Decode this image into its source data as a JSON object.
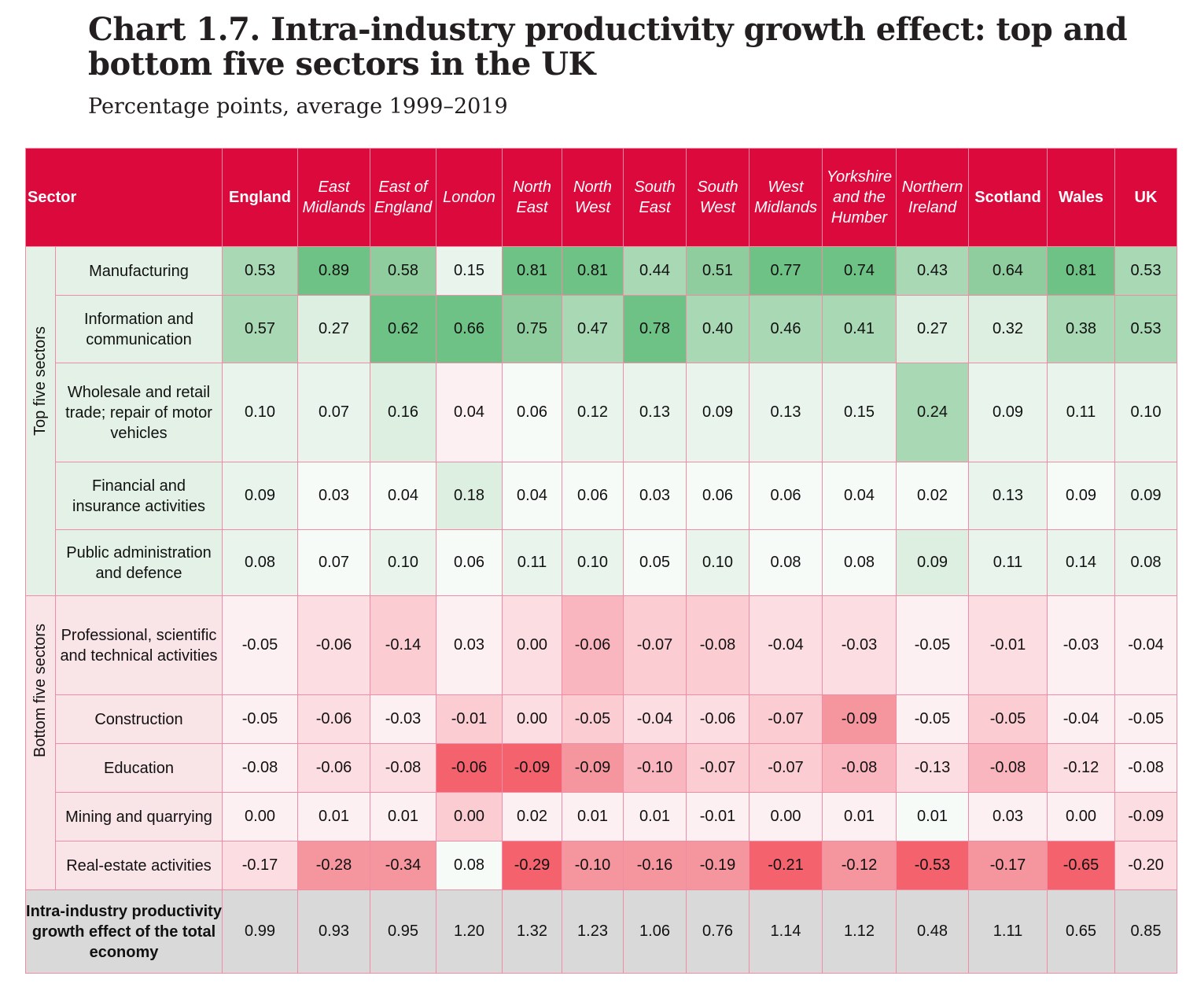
{
  "title": "Chart 1.7. Intra-industry productivity growth effect: top and bottom five sectors in the UK",
  "subtitle": "Percentage points, average 1999–2019",
  "chart_data": {
    "type": "table",
    "header_sector": "Sector",
    "columns": [
      "England",
      "East Midlands",
      "East of England",
      "London",
      "North East",
      "North West",
      "South East",
      "South West",
      "West Midlands",
      "Yorkshire and the Humber",
      "Northern Ireland",
      "Scotland",
      "Wales",
      "UK"
    ],
    "groups": [
      {
        "label": "Top five sectors",
        "rows": [
          {
            "sector": "Manufacturing",
            "values": [
              "0.53",
              "0.89",
              "0.58",
              "0.15",
              "0.81",
              "0.81",
              "0.44",
              "0.51",
              "0.77",
              "0.74",
              "0.43",
              "0.64",
              "0.81",
              "0.53"
            ],
            "shades": [
              3,
              5,
              4,
              1,
              5,
              5,
              3,
              4,
              5,
              5,
              3,
              4,
              5,
              3
            ]
          },
          {
            "sector": "Information and communication",
            "values": [
              "0.57",
              "0.27",
              "0.62",
              "0.66",
              "0.75",
              "0.47",
              "0.78",
              "0.40",
              "0.46",
              "0.41",
              "0.27",
              "0.32",
              "0.38",
              "0.53"
            ],
            "shades": [
              3,
              2,
              5,
              5,
              4,
              3,
              5,
              3,
              3,
              3,
              2,
              2,
              3,
              3
            ]
          },
          {
            "sector": "Wholesale and retail trade; repair of motor vehicles",
            "values": [
              "0.10",
              "0.07",
              "0.16",
              "0.04",
              "0.06",
              "0.12",
              "0.13",
              "0.09",
              "0.13",
              "0.15",
              "0.24",
              "0.09",
              "0.11",
              "0.10"
            ],
            "shades": [
              1,
              1,
              2,
              -1,
              0,
              1,
              1,
              1,
              1,
              1,
              3,
              1,
              1,
              1
            ]
          },
          {
            "sector": "Financial and insurance activities",
            "values": [
              "0.09",
              "0.03",
              "0.04",
              "0.18",
              "0.04",
              "0.06",
              "0.03",
              "0.06",
              "0.06",
              "0.04",
              "0.02",
              "0.13",
              "0.09",
              "0.09"
            ],
            "shades": [
              1,
              0,
              0,
              2,
              0,
              0,
              0,
              0,
              0,
              0,
              0,
              1,
              0,
              1
            ]
          },
          {
            "sector": "Public administration and defence",
            "values": [
              "0.08",
              "0.07",
              "0.10",
              "0.06",
              "0.11",
              "0.10",
              "0.05",
              "0.10",
              "0.08",
              "0.08",
              "0.09",
              "0.11",
              "0.14",
              "0.08"
            ],
            "shades": [
              1,
              0,
              1,
              0,
              1,
              1,
              0,
              1,
              0,
              0,
              2,
              1,
              1,
              1
            ]
          }
        ]
      },
      {
        "label": "Bottom five sectors",
        "rows": [
          {
            "sector": "Professional, scientific and technical activities",
            "values": [
              "-0.05",
              "-0.06",
              "-0.14",
              "0.03",
              "0.00",
              "-0.06",
              "-0.07",
              "-0.08",
              "-0.04",
              "-0.03",
              "-0.05",
              "-0.01",
              "-0.03",
              "-0.04"
            ],
            "shades": [
              -1,
              -2,
              -3,
              -1,
              -2,
              -4,
              -3,
              -3,
              -2,
              -2,
              -1,
              -2,
              -1,
              -1
            ]
          },
          {
            "sector": "Construction",
            "values": [
              "-0.05",
              "-0.06",
              "-0.03",
              "-0.01",
              "0.00",
              "-0.05",
              "-0.04",
              "-0.06",
              "-0.07",
              "-0.09",
              "-0.05",
              "-0.05",
              "-0.04",
              "-0.05"
            ],
            "shades": [
              -1,
              -2,
              -1,
              -3,
              -2,
              -3,
              -2,
              -2,
              -3,
              -5,
              -1,
              -3,
              -1,
              -1
            ]
          },
          {
            "sector": "Education",
            "values": [
              "-0.08",
              "-0.06",
              "-0.08",
              "-0.06",
              "-0.09",
              "-0.09",
              "-0.10",
              "-0.07",
              "-0.07",
              "-0.08",
              "-0.13",
              "-0.08",
              "-0.12",
              "-0.08"
            ],
            "shades": [
              -1,
              -2,
              -2,
              -6,
              -6,
              -5,
              -4,
              -3,
              -3,
              -4,
              -2,
              -4,
              -2,
              -1
            ]
          },
          {
            "sector": "Mining and quarrying",
            "values": [
              "0.00",
              "0.01",
              "0.01",
              "0.00",
              "0.02",
              "0.01",
              "0.01",
              "-0.01",
              "0.00",
              "0.01",
              "0.01",
              "0.03",
              "0.00",
              "-0.09"
            ],
            "shades": [
              -1,
              -1,
              -1,
              -3,
              -1,
              -1,
              -1,
              -1,
              -1,
              -1,
              0,
              -1,
              -1,
              -2
            ]
          },
          {
            "sector": "Real-estate activities",
            "values": [
              "-0.17",
              "-0.28",
              "-0.34",
              "0.08",
              "-0.29",
              "-0.10",
              "-0.16",
              "-0.19",
              "-0.21",
              "-0.12",
              "-0.53",
              "-0.17",
              "-0.65",
              "-0.20"
            ],
            "shades": [
              -2,
              -5,
              -5,
              0,
              -6,
              -5,
              -5,
              -5,
              -6,
              -5,
              -6,
              -5,
              -6,
              -2
            ]
          }
        ]
      }
    ],
    "total": {
      "label": "Intra-industry productivity growth effect of the total economy",
      "values": [
        "0.99",
        "0.93",
        "0.95",
        "1.20",
        "1.32",
        "1.23",
        "1.06",
        "0.76",
        "1.14",
        "1.12",
        "0.48",
        "1.11",
        "0.65",
        "0.85"
      ]
    },
    "colors": {
      "header": "#dc0a3c",
      "border": "#f08ca5",
      "total_row": "#d9d9d9",
      "green_scale": [
        "#f7fbf8",
        "#e9f5ec",
        "#dcefe1",
        "#a8d8b4",
        "#8fcd9e",
        "#6ec286"
      ],
      "red_scale": [
        "#f7fbf8",
        "#fdf0f2",
        "#fcdde2",
        "#fbcdd3",
        "#fab6bf",
        "#f5969f",
        "#f4636d"
      ]
    }
  }
}
